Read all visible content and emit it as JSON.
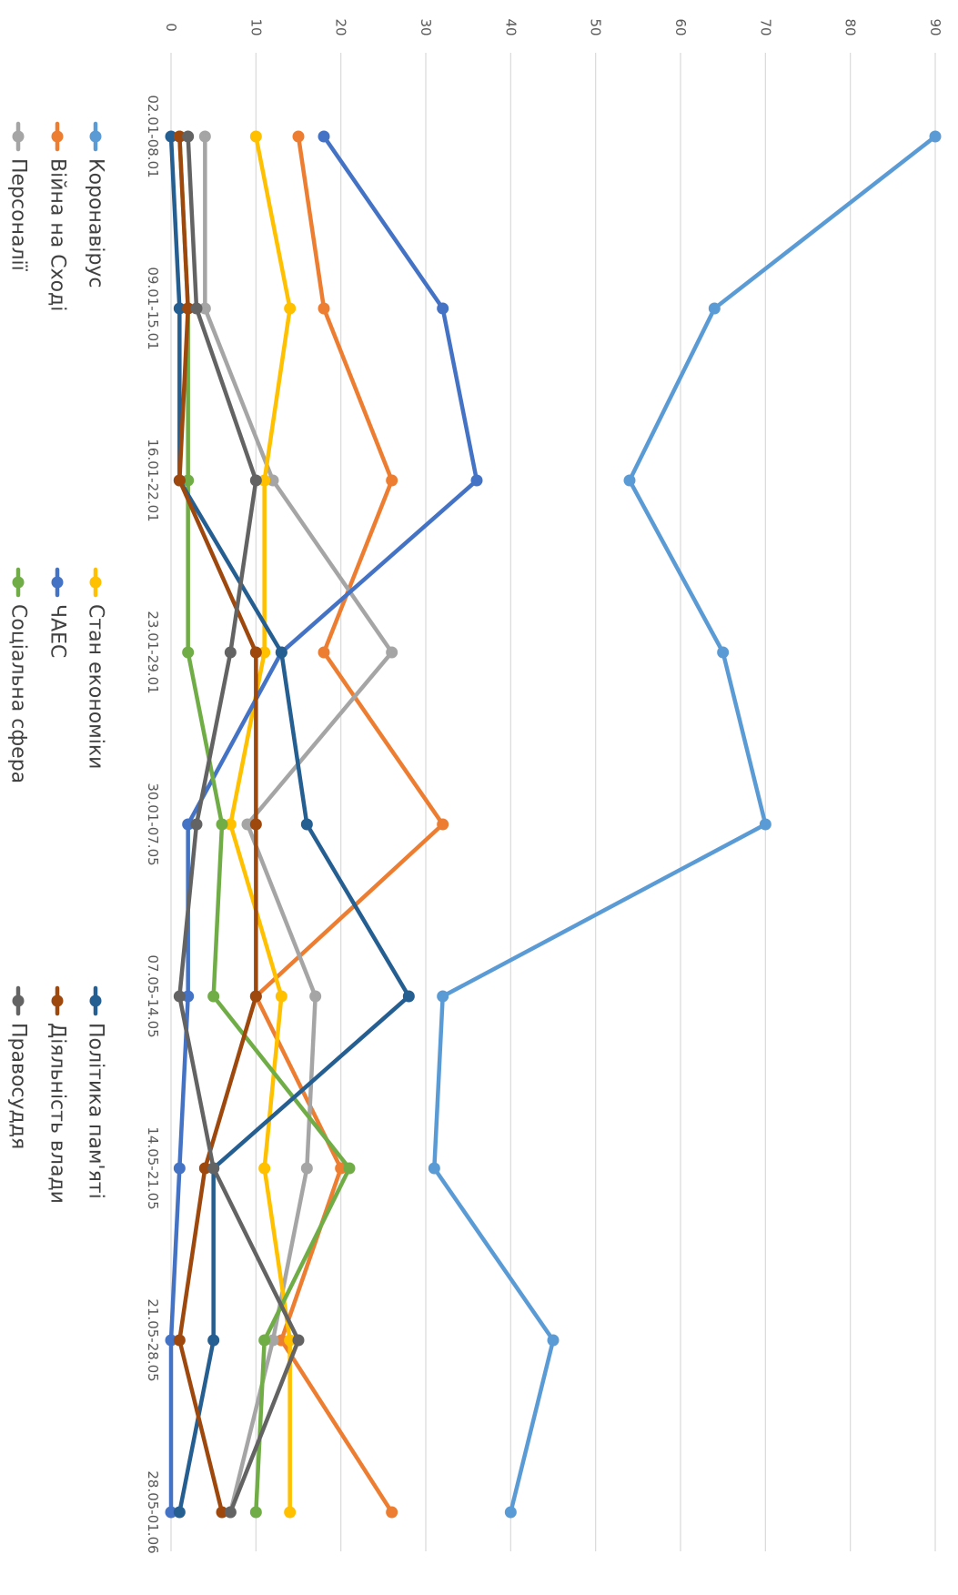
{
  "chart_data": {
    "type": "line",
    "orientation": "rotated-90-clockwise",
    "title": "",
    "xlabel": "",
    "ylabel": "",
    "ylim": [
      0,
      90
    ],
    "yticks": [
      "0",
      "10",
      "20",
      "30",
      "40",
      "50",
      "60",
      "70",
      "80",
      "90"
    ],
    "grid": true,
    "legend_position": "bottom",
    "categories": [
      "02.01-08.01",
      "09.01-15.01",
      "16.01-22.01",
      "23.01-29.01",
      "30.01-07.05",
      "07.05-14.05",
      "14.05-21.05",
      "21.05-28.05",
      "28.05-01.06"
    ],
    "series": [
      {
        "name": "Коронавірус",
        "color": "#5B9BD5",
        "values": [
          90,
          64,
          54,
          65,
          70,
          32,
          31,
          45,
          40
        ]
      },
      {
        "name": "Війна на Сході",
        "color": "#ED7D31",
        "values": [
          15,
          18,
          26,
          18,
          32,
          10,
          20,
          13,
          26
        ]
      },
      {
        "name": "Персоналії",
        "color": "#A5A5A5",
        "values": [
          4,
          4,
          12,
          26,
          9,
          17,
          16,
          12,
          7
        ]
      },
      {
        "name": "Стан економіки",
        "color": "#FFC000",
        "values": [
          10,
          14,
          11,
          11,
          7,
          13,
          11,
          14,
          14
        ]
      },
      {
        "name": "ЧАЕС",
        "color": "#4472C4",
        "values": [
          18,
          32,
          36,
          13,
          2,
          2,
          1,
          0,
          0
        ]
      },
      {
        "name": "Соціальна сфера",
        "color": "#70AD47",
        "values": [
          1,
          2,
          2,
          2,
          6,
          5,
          21,
          11,
          10
        ]
      },
      {
        "name": "Політика пам'яті",
        "color": "#255E91",
        "values": [
          0,
          1,
          1,
          13,
          16,
          28,
          5,
          5,
          1
        ]
      },
      {
        "name": "Діяльність влади",
        "color": "#9E480E",
        "values": [
          1,
          2,
          1,
          10,
          10,
          10,
          4,
          1,
          6
        ]
      },
      {
        "name": "Правосуддя",
        "color": "#636363",
        "values": [
          2,
          3,
          10,
          7,
          3,
          1,
          5,
          15,
          7
        ]
      }
    ]
  }
}
